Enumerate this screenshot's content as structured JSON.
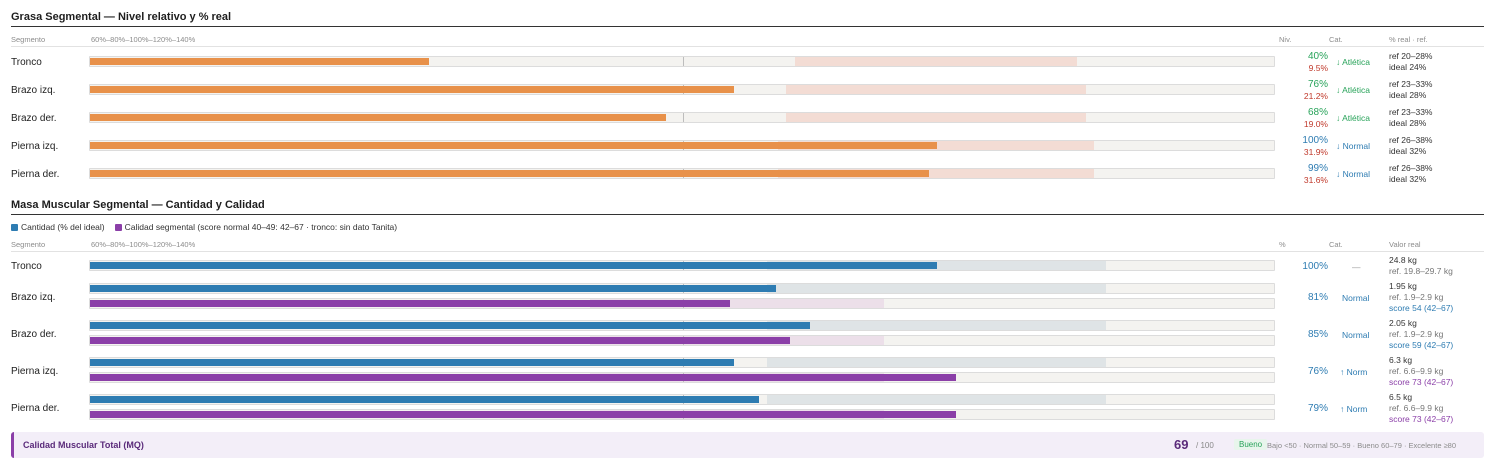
{
  "fat": {
    "title": "Grasa Segmental — Nivel relativo y % real",
    "headers": {
      "segment": "Segmento",
      "scale": "60%–80%–100%–120%–140%",
      "level": "Niv.",
      "cat": "Cat.",
      "ref": "% real · ref."
    },
    "rows": [
      {
        "label": "Tronco",
        "rel_pct": 40,
        "pct": "40%",
        "real": "9.5%",
        "cat": "↓ Atlética",
        "ref1": "ref 20–28%",
        "ref2": "ideal 24%",
        "tone": "green"
      },
      {
        "label": "Brazo izq.",
        "rel_pct": 76,
        "pct": "76%",
        "real": "21.2%",
        "cat": "↓ Atlética",
        "ref1": "ref 23–33%",
        "ref2": "ideal 28%",
        "tone": "green"
      },
      {
        "label": "Brazo der.",
        "rel_pct": 68,
        "pct": "68%",
        "real": "19.0%",
        "cat": "↓ Atlética",
        "ref1": "ref 23–33%",
        "ref2": "ideal 28%",
        "tone": "green"
      },
      {
        "label": "Pierna izq.",
        "rel_pct": 100,
        "pct": "100%",
        "real": "31.9%",
        "cat": "↓ Normal",
        "ref1": "ref 26–38%",
        "ref2": "ideal 32%",
        "tone": "blue"
      },
      {
        "label": "Pierna der.",
        "rel_pct": 99,
        "pct": "99%",
        "real": "31.6%",
        "cat": "↓ Normal",
        "ref1": "ref 26–38%",
        "ref2": "ideal 32%",
        "tone": "blue"
      }
    ]
  },
  "muscle": {
    "title": "Masa Muscular Segmental — Cantidad y Calidad",
    "legend": {
      "qty": "Cantidad (% del ideal)",
      "quality": "Calidad segmental (score normal 40–49: 42–67 · tronco: sin dato Tanita)"
    },
    "headers": {
      "segment": "Segmento",
      "scale": "60%–80%–100%–120%–140%",
      "pct": "%",
      "cat": "Cat.",
      "value": "Valor real"
    },
    "rows": [
      {
        "label": "Tronco",
        "qty_pct": 100,
        "pct": "100%",
        "cat": "—",
        "cat_tone": "gray",
        "value": "24.8 kg",
        "ref": "ref. 19.8–29.7 kg"
      },
      {
        "label": "Brazo izq.",
        "qty_pct": 81,
        "quality": 54,
        "pct": "81%",
        "cat": "Normal",
        "cat_tone": "blue",
        "value": "1.95 kg",
        "ref": "ref. 1.9–2.9 kg",
        "score": "score 54 (42–67)",
        "score_tone": "blue"
      },
      {
        "label": "Brazo der.",
        "qty_pct": 85,
        "quality": 59,
        "pct": "85%",
        "cat": "Normal",
        "cat_tone": "blue",
        "value": "2.05 kg",
        "ref": "ref. 1.9–2.9 kg",
        "score": "score 59 (42–67)",
        "score_tone": "blue"
      },
      {
        "label": "Pierna izq.",
        "qty_pct": 76,
        "quality": 73,
        "pct": "76%",
        "cat": "↑ Norm",
        "cat_tone": "blue",
        "value": "6.3 kg",
        "ref": "ref. 6.6–9.9 kg",
        "score": "score 73 (42–67)",
        "score_tone": "purple"
      },
      {
        "label": "Pierna der.",
        "qty_pct": 79,
        "quality": 73,
        "pct": "79%",
        "cat": "↑ Norm",
        "cat_tone": "blue",
        "value": "6.5 kg",
        "ref": "ref. 6.6–9.9 kg",
        "score": "score 73 (42–67)",
        "score_tone": "purple"
      }
    ]
  },
  "mq": {
    "title": "Calidad Muscular Total (MQ)",
    "score": "69",
    "of": "/ 100",
    "badge": "Bueno",
    "scale": "Bajo <50 · Normal 50–59 · Bueno 60–79 · Excelente ≥80"
  },
  "colors": {
    "fat": "#e8914a",
    "quantity": "#2e7cb2",
    "quality": "#8b3fa8",
    "good": "#28a35a",
    "warn": "#c0392b"
  }
}
